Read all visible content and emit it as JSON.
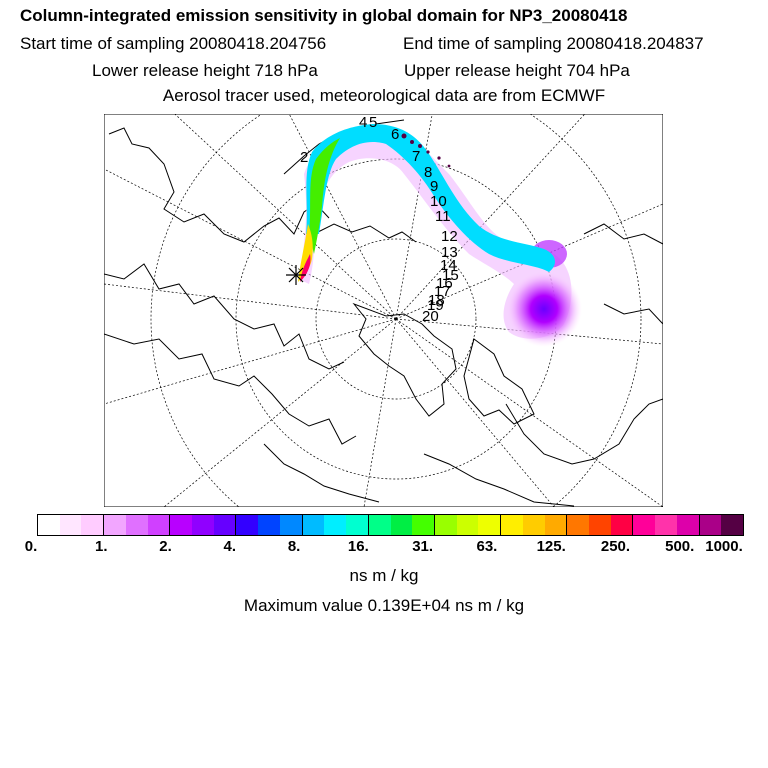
{
  "header": {
    "title": "Column-integrated emission sensitivity in global domain for NP3_20080418",
    "start_time": "Start time of sampling 20080418.204756",
    "end_time": "End time of sampling 20080418.204837",
    "lower_release": "Lower release height  718 hPa",
    "upper_release": "Upper release height  704 hPa",
    "info": "Aerosol tracer used, meteorological data are from ECMWF"
  },
  "map": {
    "projection": "polar stereographic (north)",
    "release_marker": "release-point-asterisk",
    "day_labels": [
      "2",
      "4",
      "5",
      "6",
      "7",
      "8",
      "9",
      "10",
      "11",
      "12",
      "13",
      "14",
      "15",
      "16",
      "17",
      "18",
      "19",
      "20"
    ]
  },
  "colorbar": {
    "colors": [
      "#ffffff",
      "#ffe6ff",
      "#ffccff",
      "#f2a6ff",
      "#e070ff",
      "#d040ff",
      "#b800ff",
      "#9000ff",
      "#6600ff",
      "#3300ff",
      "#0044ff",
      "#0088ff",
      "#00bbff",
      "#00eeff",
      "#00ffd0",
      "#00ff88",
      "#00ee44",
      "#44ff00",
      "#99ff00",
      "#ccff00",
      "#eeff00",
      "#ffee00",
      "#ffcc00",
      "#ffaa00",
      "#ff7700",
      "#ff4400",
      "#ff0044",
      "#ff0099",
      "#ff33aa",
      "#dd00aa",
      "#aa0088",
      "#550044"
    ],
    "tick_labels": [
      "0.",
      "1.",
      "2.",
      "4.",
      "8.",
      "16.",
      "31.",
      "63.",
      "125.",
      "250.",
      "500.",
      "1000."
    ]
  },
  "footer": {
    "units": "ns m / kg",
    "maximum": "Maximum value  0.139E+04 ns m / kg"
  }
}
